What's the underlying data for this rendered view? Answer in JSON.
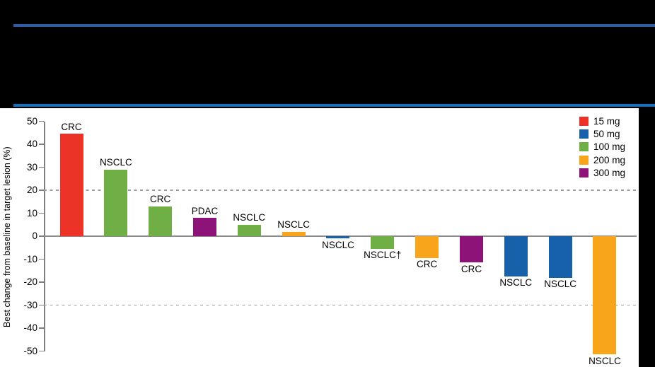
{
  "header": {
    "rule_top_color": "#2D5CA3",
    "rule_bottom_color": "#1272C2",
    "background": "#000000"
  },
  "chart_data": {
    "type": "bar",
    "title": "",
    "ylabel": "Best change from baseline in target lesion (%)",
    "ylim": [
      -50,
      50
    ],
    "yticks": [
      50,
      40,
      30,
      20,
      10,
      0,
      -10,
      -20,
      -30,
      -40,
      -50
    ],
    "reference_lines": [
      {
        "y": 20,
        "style": "dashed"
      },
      {
        "y": 0,
        "style": "solid"
      },
      {
        "y": -30,
        "style": "dashed"
      }
    ],
    "legend": {
      "position": "top-right",
      "entries": [
        {
          "label": "15 mg",
          "color": "#ED3227"
        },
        {
          "label": "50 mg",
          "color": "#1661A9"
        },
        {
          "label": "100 mg",
          "color": "#6FAF46"
        },
        {
          "label": "200 mg",
          "color": "#F9A51B"
        },
        {
          "label": "300 mg",
          "color": "#8D1379"
        }
      ]
    },
    "bars": [
      {
        "label": "CRC",
        "dose": "15 mg",
        "value": 44.5,
        "color": "#ED3227"
      },
      {
        "label": "NSCLC",
        "dose": "100 mg",
        "value": 29,
        "color": "#6FAF46"
      },
      {
        "label": "CRC",
        "dose": "100 mg",
        "value": 13,
        "color": "#6FAF46"
      },
      {
        "label": "PDAC",
        "dose": "300 mg",
        "value": 8,
        "color": "#8D1379"
      },
      {
        "label": "NSCLC",
        "dose": "100 mg",
        "value": 5,
        "color": "#6FAF46"
      },
      {
        "label": "NSCLC",
        "dose": "200 mg",
        "value": 2,
        "color": "#F9A51B"
      },
      {
        "label": "NSCLC",
        "dose": "50 mg",
        "value": -1,
        "color": "#1661A9"
      },
      {
        "label": "NSCLC†",
        "dose": "100 mg",
        "value": -5.5,
        "color": "#6FAF46"
      },
      {
        "label": "CRC",
        "dose": "200 mg",
        "value": -9.5,
        "color": "#F9A51B"
      },
      {
        "label": "CRC",
        "dose": "300 mg",
        "value": -11.5,
        "color": "#8D1379"
      },
      {
        "label": "NSCLC",
        "dose": "50 mg",
        "value": -17.5,
        "color": "#1661A9"
      },
      {
        "label": "NSCLC",
        "dose": "50 mg",
        "value": -18,
        "color": "#1661A9"
      },
      {
        "label": "NSCLC",
        "dose": "200 mg",
        "value": -51.5,
        "color": "#F9A51B"
      }
    ],
    "grid": "reference lines only",
    "plot_background": "#FFFFFF"
  }
}
